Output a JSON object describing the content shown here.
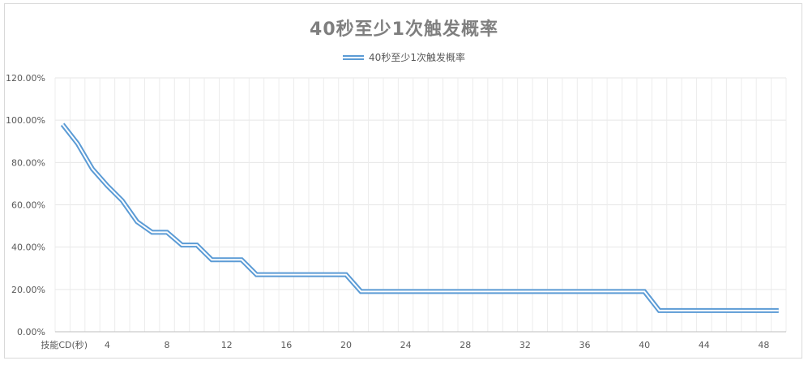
{
  "chart_data": {
    "type": "line",
    "title": "40秒至少1次触发概率",
    "xlabel": "",
    "ylabel": "",
    "x_first_label": "技能CD(秒)",
    "x": [
      1,
      2,
      3,
      4,
      5,
      6,
      7,
      8,
      9,
      10,
      11,
      12,
      13,
      14,
      15,
      16,
      17,
      18,
      19,
      20,
      21,
      22,
      23,
      24,
      25,
      26,
      27,
      28,
      29,
      30,
      31,
      32,
      33,
      34,
      35,
      36,
      37,
      38,
      39,
      40,
      41,
      42,
      43,
      44,
      45,
      46,
      47,
      48,
      49
    ],
    "series": [
      {
        "name": "40秒至少1次触发概率",
        "color": "#5b9bd5",
        "values": [
          0.98,
          0.89,
          0.77,
          0.69,
          0.62,
          0.52,
          0.47,
          0.47,
          0.41,
          0.41,
          0.34,
          0.34,
          0.34,
          0.27,
          0.27,
          0.27,
          0.27,
          0.27,
          0.27,
          0.27,
          0.19,
          0.19,
          0.19,
          0.19,
          0.19,
          0.19,
          0.19,
          0.19,
          0.19,
          0.19,
          0.19,
          0.19,
          0.19,
          0.19,
          0.19,
          0.19,
          0.19,
          0.19,
          0.19,
          0.19,
          0.1,
          0.1,
          0.1,
          0.1,
          0.1,
          0.1,
          0.1,
          0.1,
          0.1
        ]
      }
    ],
    "x_tick_labels": [
      "4",
      "8",
      "12",
      "16",
      "20",
      "24",
      "28",
      "32",
      "36",
      "40",
      "44",
      "48"
    ],
    "y_tick_labels": [
      "0.00%",
      "20.00%",
      "40.00%",
      "60.00%",
      "80.00%",
      "100.00%",
      "120.00%"
    ],
    "ylim": [
      0,
      1.2
    ],
    "grid": true,
    "legend_position": "top-center"
  }
}
